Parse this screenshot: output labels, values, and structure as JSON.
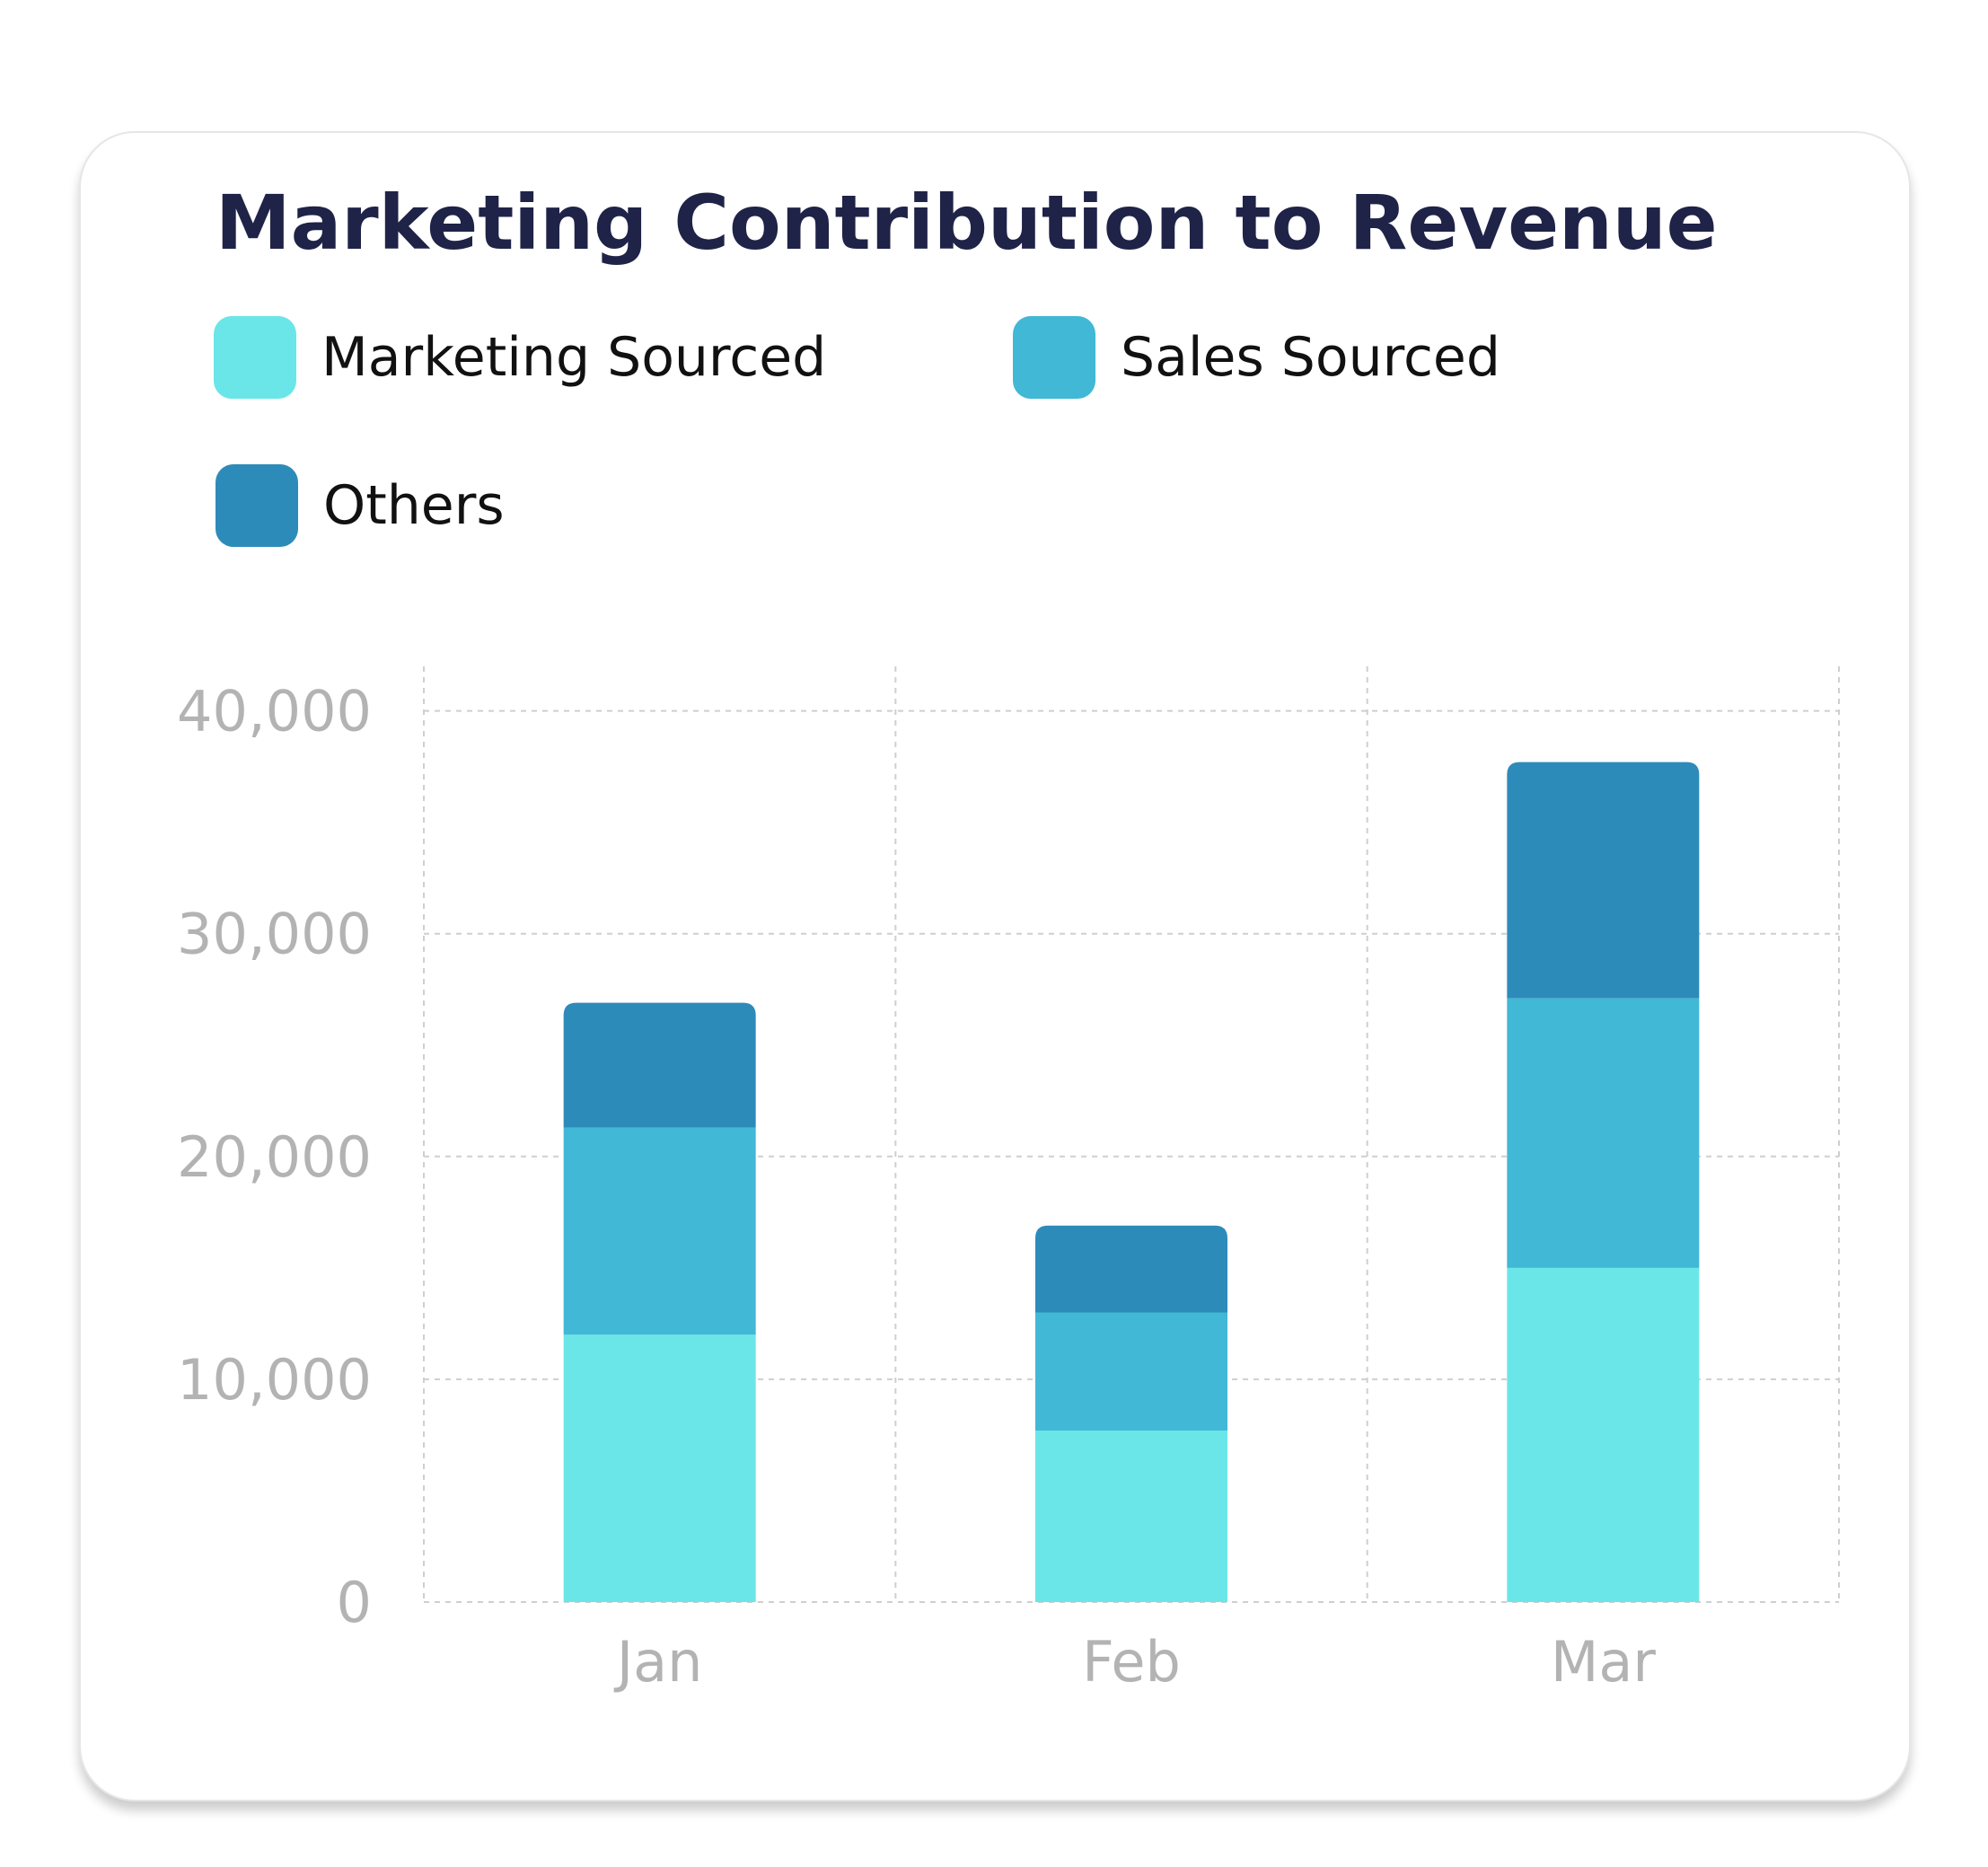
{
  "colors": {
    "marketing_sourced": "#6be6e8",
    "sales_sourced": "#41b8d5",
    "others": "#2d8bba",
    "grid": "#cfcfcf",
    "tick_text": "#b3b3b3",
    "title": "#1f2347"
  },
  "legend": [
    {
      "label": "Marketing Sourced",
      "color": "#6be6e8"
    },
    {
      "label": "Sales Sourced",
      "color": "#41b8d5"
    },
    {
      "label": "Others",
      "color": "#2d8bba"
    }
  ],
  "chart_data": {
    "type": "bar",
    "stacked": true,
    "title": "Marketing Contribution to Revenue",
    "xlabel": "",
    "ylabel": "",
    "categories": [
      "Jan",
      "Feb",
      "Mar"
    ],
    "series": [
      {
        "name": "Marketing Sourced",
        "values": [
          12000,
          7700,
          15000
        ]
      },
      {
        "name": "Sales Sourced",
        "values": [
          9300,
          5300,
          12100
        ]
      },
      {
        "name": "Others",
        "values": [
          5600,
          3900,
          10600
        ]
      }
    ],
    "ylim": [
      0,
      42000
    ],
    "yticks": [
      0,
      10000,
      20000,
      30000,
      40000
    ],
    "ytick_labels": [
      "0",
      "10,000",
      "20,000",
      "30,000",
      "40,000"
    ],
    "grid": true,
    "grid_style": "dashed",
    "legend_position": "top-left"
  }
}
